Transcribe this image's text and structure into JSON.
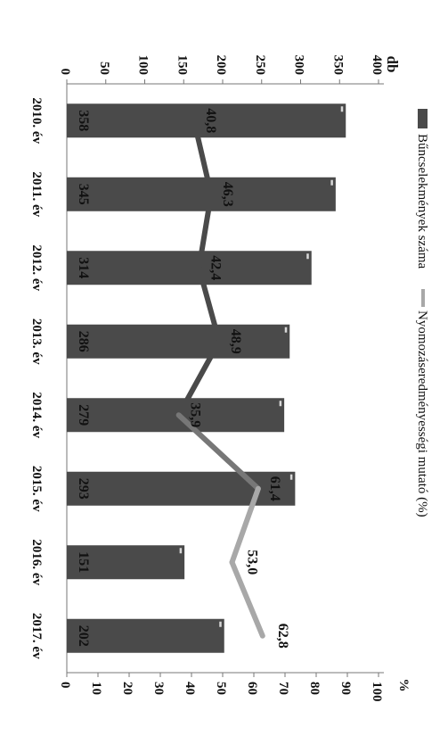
{
  "chart_data": {
    "type": "bar",
    "categories": [
      "2010. év",
      "2011. év",
      "2012. év",
      "2013. év",
      "2014. év",
      "2015. év",
      "2016. év",
      "2017. év"
    ],
    "series": [
      {
        "name": "Bűncselekmények száma",
        "type": "bar",
        "axis": "left",
        "values": [
          358,
          345,
          314,
          286,
          279,
          293,
          151,
          202
        ],
        "color": "#4a4a4a"
      },
      {
        "name": "Nyomozáseredményességi mutató (%)",
        "type": "line",
        "axis": "right",
        "values": [
          40.8,
          46.3,
          42.4,
          48.9,
          35.9,
          61.4,
          53.0,
          62.8
        ],
        "color": "#4a4a4a",
        "color_recent": "#a8a8a8"
      }
    ],
    "bar_labels": [
      "358",
      "345",
      "314",
      "286",
      "279",
      "293",
      "151",
      "202"
    ],
    "line_labels": [
      "40,8",
      "46,3",
      "42,4",
      "48,9",
      "35,9",
      "61,4",
      "53,0",
      "62,8"
    ],
    "y_left": {
      "unit": "db",
      "ticks": [
        "0",
        "50",
        "100",
        "150",
        "200",
        "250",
        "300",
        "350",
        "400"
      ],
      "range": [
        0,
        400
      ]
    },
    "y_right": {
      "unit": "%",
      "ticks": [
        "0",
        "10",
        "20",
        "30",
        "40",
        "50",
        "60",
        "70",
        "80",
        "90",
        "100"
      ],
      "range": [
        0,
        100
      ]
    },
    "legend": {
      "placement": "top",
      "items": [
        "Bűncselekmények száma",
        "Nyomozáseredményességi mutató (%)"
      ]
    },
    "grid": false,
    "orientation": "rotated-90-clockwise"
  }
}
